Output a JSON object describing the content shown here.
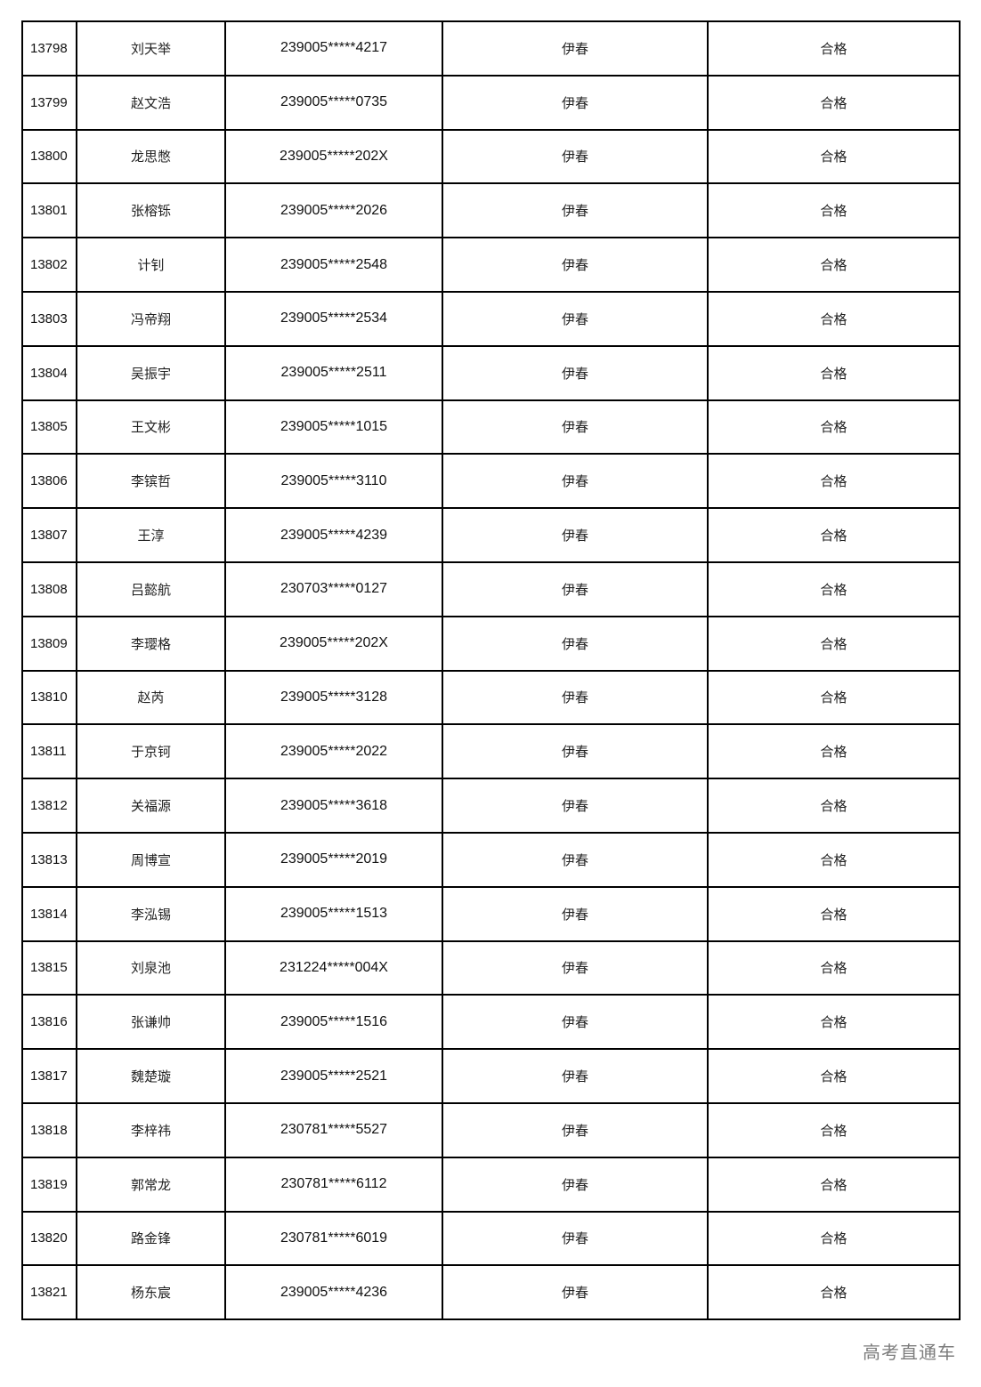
{
  "rows": [
    [
      "13798",
      "刘天举",
      "239005*****4217",
      "伊春",
      "合格"
    ],
    [
      "13799",
      "赵文浩",
      "239005*****0735",
      "伊春",
      "合格"
    ],
    [
      "13800",
      "龙思憋",
      "239005*****202X",
      "伊春",
      "合格"
    ],
    [
      "13801",
      "张榕铄",
      "239005*****2026",
      "伊春",
      "合格"
    ],
    [
      "13802",
      "计钊",
      "239005*****2548",
      "伊春",
      "合格"
    ],
    [
      "13803",
      "冯帝翔",
      "239005*****2534",
      "伊春",
      "合格"
    ],
    [
      "13804",
      "吴振宇",
      "239005*****2511",
      "伊春",
      "合格"
    ],
    [
      "13805",
      "王文彬",
      "239005*****1015",
      "伊春",
      "合格"
    ],
    [
      "13806",
      "李镔哲",
      "239005*****3110",
      "伊春",
      "合格"
    ],
    [
      "13807",
      "王淳",
      "239005*****4239",
      "伊春",
      "合格"
    ],
    [
      "13808",
      "吕懿航",
      "230703*****0127",
      "伊春",
      "合格"
    ],
    [
      "13809",
      "李璎格",
      "239005*****202X",
      "伊春",
      "合格"
    ],
    [
      "13810",
      "赵芮",
      "239005*****3128",
      "伊春",
      "合格"
    ],
    [
      "13811",
      "于京钶",
      "239005*****2022",
      "伊春",
      "合格"
    ],
    [
      "13812",
      "关福源",
      "239005*****3618",
      "伊春",
      "合格"
    ],
    [
      "13813",
      "周博宣",
      "239005*****2019",
      "伊春",
      "合格"
    ],
    [
      "13814",
      "李泓锡",
      "239005*****1513",
      "伊春",
      "合格"
    ],
    [
      "13815",
      "刘泉池",
      "231224*****004X",
      "伊春",
      "合格"
    ],
    [
      "13816",
      "张谦帅",
      "239005*****1516",
      "伊春",
      "合格"
    ],
    [
      "13817",
      "魏楚璇",
      "239005*****2521",
      "伊春",
      "合格"
    ],
    [
      "13818",
      "李梓祎",
      "230781*****5527",
      "伊春",
      "合格"
    ],
    [
      "13819",
      "郭常龙",
      "230781*****6112",
      "伊春",
      "合格"
    ],
    [
      "13820",
      "路金锋",
      "230781*****6019",
      "伊春",
      "合格"
    ],
    [
      "13821",
      "杨东宸",
      "239005*****4236",
      "伊春",
      "合格"
    ]
  ],
  "watermark": "高考直通车"
}
